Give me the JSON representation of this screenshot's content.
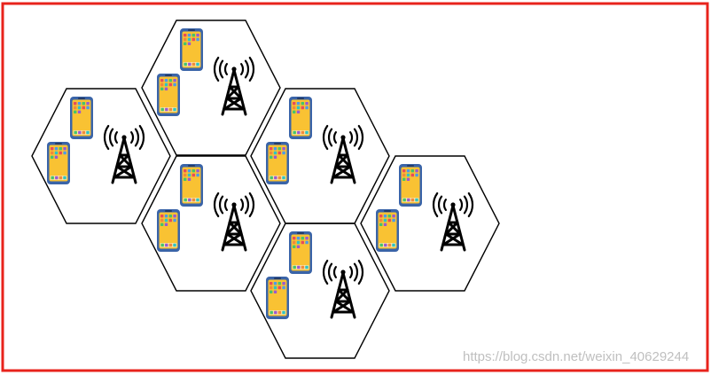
{
  "diagram": {
    "cells": [
      {
        "id": "cell-top",
        "tower": "cell-tower-icon",
        "devices": [
          "smartphone-icon",
          "smartphone-icon"
        ]
      },
      {
        "id": "cell-left",
        "tower": "cell-tower-icon",
        "devices": [
          "smartphone-icon",
          "smartphone-icon"
        ]
      },
      {
        "id": "cell-center",
        "tower": "cell-tower-icon",
        "devices": [
          "smartphone-icon",
          "smartphone-icon"
        ]
      },
      {
        "id": "cell-upper-right",
        "tower": "cell-tower-icon",
        "devices": [
          "smartphone-icon",
          "smartphone-icon"
        ]
      },
      {
        "id": "cell-bottom",
        "tower": "cell-tower-icon",
        "devices": [
          "smartphone-icon",
          "smartphone-icon"
        ]
      },
      {
        "id": "cell-far-right",
        "tower": "cell-tower-icon",
        "devices": [
          "smartphone-icon",
          "smartphone-icon"
        ]
      }
    ]
  },
  "colors": {
    "frame": "#e8231c",
    "hexagon_stroke": "#000000",
    "phone_body": "#3a64a8",
    "phone_screen": "#f9c233",
    "app_colors": [
      "#e84c5a",
      "#4c9be8",
      "#46c46a",
      "#9b59d0",
      "#f08a3c",
      "#2ec4c4"
    ]
  },
  "watermark": "https://blog.csdn.net/weixin_40629244"
}
